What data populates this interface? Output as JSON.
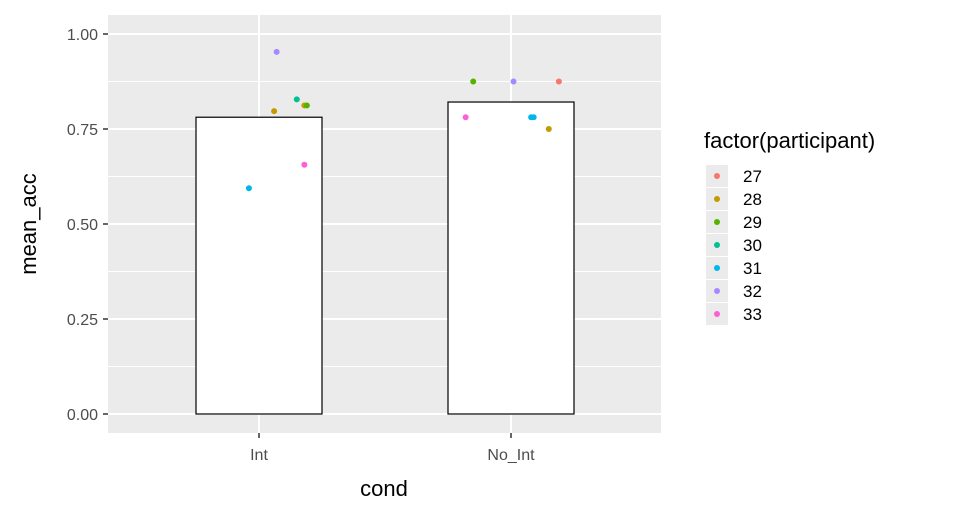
{
  "chart_data": {
    "type": "bar",
    "xlabel": "cond",
    "ylabel": "mean_acc",
    "categories": [
      "Int",
      "No_Int"
    ],
    "bar_values": [
      0.781,
      0.821
    ],
    "ylim": [
      -0.05,
      1.05
    ],
    "yticks": [
      0.0,
      0.25,
      0.5,
      0.75,
      1.0
    ],
    "ytick_labels": [
      "0.00",
      "0.25",
      "0.50",
      "0.75",
      "1.00"
    ],
    "grid": true,
    "legend": {
      "title": "factor(participant)",
      "placement": "right",
      "entries": [
        {
          "label": "27",
          "color": "#F8766D"
        },
        {
          "label": "28",
          "color": "#C49A00"
        },
        {
          "label": "29",
          "color": "#53B400"
        },
        {
          "label": "30",
          "color": "#00C094"
        },
        {
          "label": "31",
          "color": "#00B6EB"
        },
        {
          "label": "32",
          "color": "#A58AFF"
        },
        {
          "label": "33",
          "color": "#FB61D7"
        }
      ]
    },
    "points": [
      {
        "participant": "28",
        "cond": "Int",
        "y": 0.797,
        "jitter": 0.06
      },
      {
        "participant": "32",
        "cond": "Int",
        "y": 0.953,
        "jitter": 0.07
      },
      {
        "participant": "30",
        "cond": "Int",
        "y": 0.828,
        "jitter": 0.15
      },
      {
        "participant": "28",
        "cond": "Int",
        "y": 0.812,
        "jitter": 0.18
      },
      {
        "participant": "29",
        "cond": "Int",
        "y": 0.812,
        "jitter": 0.19
      },
      {
        "participant": "33",
        "cond": "Int",
        "y": 0.656,
        "jitter": 0.18
      },
      {
        "participant": "31",
        "cond": "Int",
        "y": 0.594,
        "jitter": -0.04
      },
      {
        "participant": "29",
        "cond": "No_Int",
        "y": 0.875,
        "jitter": -0.15
      },
      {
        "participant": "32",
        "cond": "No_Int",
        "y": 0.875,
        "jitter": 0.01
      },
      {
        "participant": "27",
        "cond": "No_Int",
        "y": 0.875,
        "jitter": 0.19
      },
      {
        "participant": "33",
        "cond": "No_Int",
        "y": 0.781,
        "jitter": -0.18
      },
      {
        "participant": "31",
        "cond": "No_Int",
        "y": 0.781,
        "jitter": 0.09
      },
      {
        "participant": "31",
        "cond": "No_Int",
        "y": 0.781,
        "jitter": 0.08
      },
      {
        "participant": "28",
        "cond": "No_Int",
        "y": 0.75,
        "jitter": 0.15
      }
    ]
  }
}
